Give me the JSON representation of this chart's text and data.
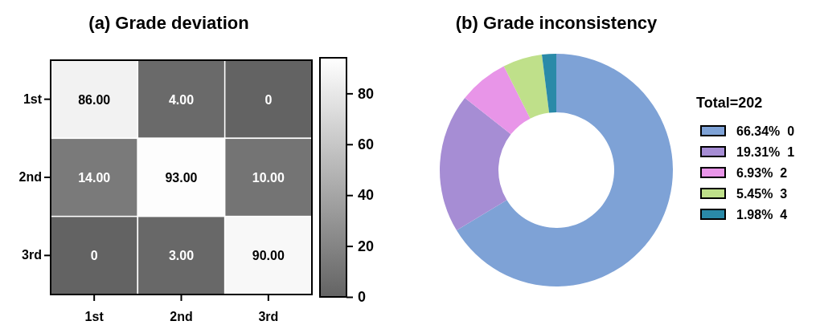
{
  "chart_data": [
    {
      "type": "heatmap",
      "title": "(a) Grade deviation",
      "categories": [
        "1st",
        "2nd",
        "3rd"
      ],
      "y_categories": [
        "1st",
        "2nd",
        "3rd"
      ],
      "cells": [
        [
          86,
          4,
          0
        ],
        [
          14,
          93,
          10
        ],
        [
          0,
          3,
          90
        ]
      ],
      "cell_labels": [
        [
          "86.00",
          "4.00",
          "0"
        ],
        [
          "14.00",
          "93.00",
          "10.00"
        ],
        [
          "0",
          "3.00",
          "90.00"
        ]
      ],
      "clim": [
        0,
        94
      ],
      "cticks": [
        0,
        20,
        40,
        60,
        80
      ],
      "colors": [
        "#636363",
        "#ffffff"
      ]
    },
    {
      "type": "donut",
      "title": "(b) Grade inconsistency",
      "legend_title": "Total=202",
      "categories": [
        "0",
        "1",
        "2",
        "3",
        "4"
      ],
      "values": [
        66.34,
        19.31,
        6.93,
        5.45,
        1.98
      ],
      "value_labels": [
        "66.34%",
        "19.31%",
        "6.93%",
        "5.45%",
        "1.98%"
      ],
      "colors": [
        "#7ea2d6",
        "#a68dd4",
        "#e895e8",
        "#bfe08a",
        "#2a8aa8"
      ],
      "legend": "right"
    }
  ]
}
